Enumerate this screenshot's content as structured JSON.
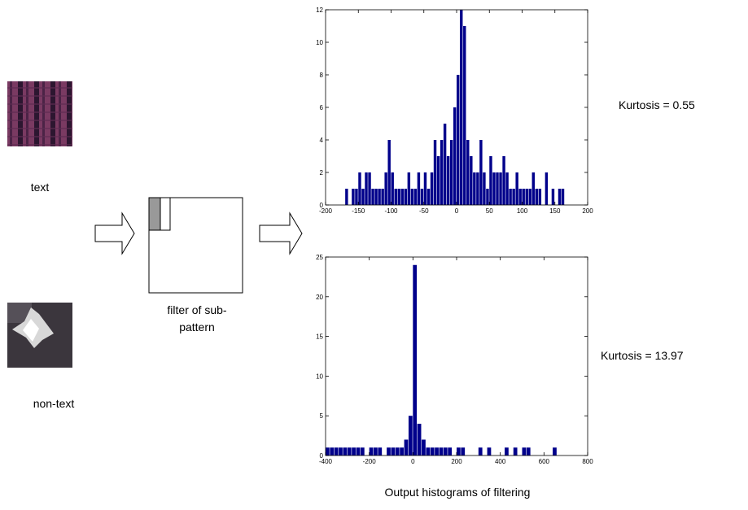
{
  "labels": {
    "text_sample": "text",
    "nontext_sample": "non-text",
    "filter_line1": "filter of sub-",
    "filter_line2": "pattern",
    "caption": "Output histograms of filtering"
  },
  "chart_data": [
    {
      "type": "histogram",
      "annotation": "Kurtosis = 0.55",
      "color": "#00008b",
      "bins": [
        -175,
        -170,
        -165,
        -160,
        -155,
        -150,
        -145,
        -140,
        -135,
        -130,
        -125,
        -120,
        -115,
        -110,
        -105,
        -100,
        -95,
        -90,
        -85,
        -80,
        -75,
        -70,
        -65,
        -60,
        -55,
        -50,
        -45,
        -40,
        -35,
        -30,
        -25,
        -20,
        -15,
        -10,
        -5,
        0,
        5,
        10,
        15,
        20,
        25,
        30,
        35,
        40,
        45,
        50,
        55,
        60,
        65,
        70,
        75,
        80,
        85,
        90,
        95,
        100,
        105,
        110,
        115,
        120,
        125,
        130,
        135,
        140,
        145,
        150,
        155,
        160,
        165
      ],
      "values": [
        0,
        1,
        0,
        1,
        1,
        2,
        1,
        2,
        2,
        1,
        1,
        1,
        1,
        2,
        4,
        2,
        1,
        1,
        1,
        1,
        2,
        1,
        1,
        2,
        1,
        2,
        1,
        2,
        4,
        3,
        4,
        5,
        3,
        4,
        6,
        8,
        12,
        11,
        4,
        3,
        2,
        2,
        4,
        2,
        1,
        3,
        2,
        2,
        2,
        3,
        2,
        1,
        1,
        2,
        1,
        1,
        1,
        1,
        2,
        1,
        1,
        0,
        2,
        0,
        1,
        0,
        1,
        1
      ],
      "xlim": [
        -200,
        200
      ],
      "xticks": [
        -200,
        -150,
        -100,
        -50,
        0,
        50,
        100,
        150,
        200
      ],
      "ylim": [
        0,
        12
      ],
      "yticks": [
        0,
        2,
        4,
        6,
        8,
        10,
        12
      ]
    },
    {
      "type": "histogram",
      "annotation": "Kurtosis = 13.97",
      "color": "#00008b",
      "bins": [
        -400,
        -380,
        -360,
        -340,
        -320,
        -300,
        -280,
        -260,
        -240,
        -220,
        -200,
        -180,
        -160,
        -140,
        -120,
        -100,
        -80,
        -60,
        -40,
        -20,
        0,
        20,
        40,
        60,
        80,
        100,
        120,
        140,
        160,
        180,
        200,
        220,
        240,
        260,
        280,
        300,
        320,
        340,
        360,
        380,
        400,
        420,
        440,
        460,
        480,
        500,
        520,
        540,
        560,
        580,
        600,
        620,
        640,
        660
      ],
      "values": [
        1,
        1,
        1,
        1,
        1,
        1,
        1,
        1,
        1,
        0,
        1,
        1,
        1,
        0,
        1,
        1,
        1,
        1,
        2,
        5,
        24,
        4,
        2,
        1,
        1,
        1,
        1,
        1,
        1,
        0,
        1,
        1,
        0,
        0,
        0,
        1,
        0,
        1,
        0,
        0,
        0,
        1,
        0,
        1,
        0,
        1,
        1,
        0,
        0,
        0,
        0,
        0,
        1
      ],
      "xlim": [
        -400,
        800
      ],
      "xticks": [
        -400,
        -200,
        0,
        200,
        400,
        600,
        800
      ],
      "ylim": [
        0,
        25
      ],
      "yticks": [
        0,
        5,
        10,
        15,
        20,
        25
      ]
    }
  ]
}
